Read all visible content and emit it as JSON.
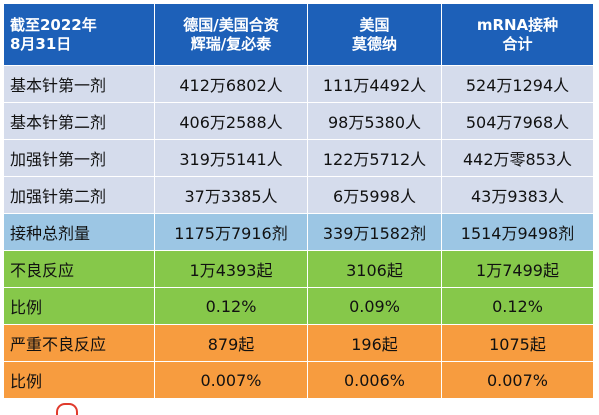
{
  "header": {
    "col0_line1": "截至2022年",
    "col0_line2": "8月31日",
    "col1_line1": "德国/美国合资",
    "col1_line2": "辉瑞/复必泰",
    "col2_line1": "美国",
    "col2_line2": "莫德纳",
    "col3_line1": "mRNA接种",
    "col3_line2": "合计"
  },
  "rows": [
    {
      "label": "基本针第一剂",
      "pfizer": "412万6802人",
      "moderna": "111万4492人",
      "total": "524万1294人"
    },
    {
      "label": "基本针第二剂",
      "pfizer": "406万2588人",
      "moderna": "98万5380人",
      "total": "504万7968人"
    },
    {
      "label": "加强针第一剂",
      "pfizer": "319万5141人",
      "moderna": "122万5712人",
      "total": "442万零853人"
    },
    {
      "label": "加强针第二剂",
      "pfizer": "37万3385人",
      "moderna": "6万5998人",
      "total": "43万9383人"
    },
    {
      "label": "接种总剂量",
      "pfizer": "1175万7916剂",
      "moderna": "339万1582剂",
      "total": "1514万9498剂"
    },
    {
      "label": "不良反应",
      "pfizer": "1万4393起",
      "moderna": "3106起",
      "total": "1万7499起"
    },
    {
      "label": "比例",
      "pfizer": "0.12%",
      "moderna": "0.09%",
      "total": "0.12%"
    },
    {
      "label": "严重不良反应",
      "pfizer": "879起",
      "moderna": "196起",
      "total": "1075起"
    },
    {
      "label": "比例",
      "pfizer": "0.007%",
      "moderna": "0.006%",
      "total": "0.007%"
    }
  ],
  "colors": {
    "header": "#1d60b8",
    "dose_rows": "#d5dcec",
    "total_row": "#9cc6e4",
    "adverse_rows": "#86c84a",
    "serious_rows": "#f79c3f"
  }
}
